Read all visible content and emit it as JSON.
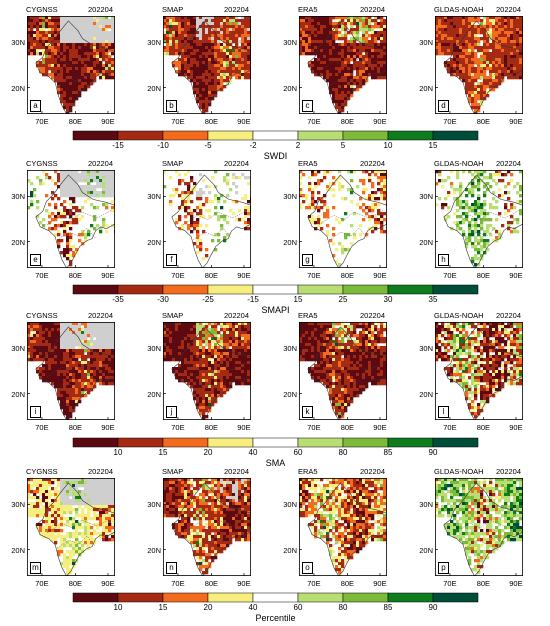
{
  "rows": [
    {
      "panels": [
        {
          "product": "CYGNSS",
          "date": "202204",
          "label": "a",
          "scheme": "cyg"
        },
        {
          "product": "SMAP",
          "date": "202204",
          "label": "b",
          "scheme": "dry2"
        },
        {
          "product": "ERA5",
          "date": "202204",
          "label": "c",
          "scheme": "dry1"
        },
        {
          "product": "GLDAS-NOAH",
          "date": "202204",
          "label": "d",
          "scheme": "dry3"
        }
      ],
      "colorbar": {
        "ticks": [
          "-15",
          "-10",
          "-5",
          "-2",
          "2",
          "5",
          "10",
          "15"
        ],
        "title": "SWDI"
      }
    },
    {
      "panels": [
        {
          "product": "CYGNSS",
          "date": "202204",
          "label": "e",
          "scheme": "cygw"
        },
        {
          "product": "SMAP",
          "date": "202204",
          "label": "f",
          "scheme": "neu1"
        },
        {
          "product": "ERA5",
          "date": "202204",
          "label": "g",
          "scheme": "neu2"
        },
        {
          "product": "GLDAS-NOAH",
          "date": "202204",
          "label": "h",
          "scheme": "wet1"
        }
      ],
      "colorbar": {
        "ticks": [
          "-35",
          "-30",
          "-25",
          "-15",
          "15",
          "25",
          "30",
          "35"
        ],
        "title": "SMAPI"
      }
    },
    {
      "panels": [
        {
          "product": "CYGNSS",
          "date": "202204",
          "label": "i",
          "scheme": "cyg"
        },
        {
          "product": "SMAP",
          "date": "202204",
          "label": "j",
          "scheme": "dry1"
        },
        {
          "product": "ERA5",
          "date": "202204",
          "label": "k",
          "scheme": "dry1"
        },
        {
          "product": "GLDAS-NOAH",
          "date": "202204",
          "label": "l",
          "scheme": "mix"
        }
      ],
      "colorbar": {
        "ticks": [
          "10",
          "15",
          "20",
          "40",
          "60",
          "80",
          "85",
          "90"
        ],
        "title": "SMA"
      }
    },
    {
      "panels": [
        {
          "product": "CYGNSS",
          "date": "202204",
          "label": "m",
          "scheme": "cygy"
        },
        {
          "product": "SMAP",
          "date": "202204",
          "label": "n",
          "scheme": "mix2"
        },
        {
          "product": "ERA5",
          "date": "202204",
          "label": "o",
          "scheme": "mix3"
        },
        {
          "product": "GLDAS-NOAH",
          "date": "202204",
          "label": "p",
          "scheme": "wet2"
        }
      ],
      "colorbar": {
        "ticks": [
          "10",
          "15",
          "20",
          "40",
          "60",
          "80",
          "85",
          "90"
        ],
        "title": "Percentile"
      }
    }
  ],
  "axes": {
    "x_ticks": [
      "70E",
      "80E",
      "90E"
    ],
    "y_ticks": [
      "30N",
      "20N"
    ]
  },
  "palette": [
    "#5c0a12",
    "#a52a14",
    "#f36b1c",
    "#f7ee80",
    "#ffffff",
    "#b8dd72",
    "#7cbb3a",
    "#0f7d1e",
    "#004d3a"
  ],
  "no_data_color": "#cfcfcf"
}
